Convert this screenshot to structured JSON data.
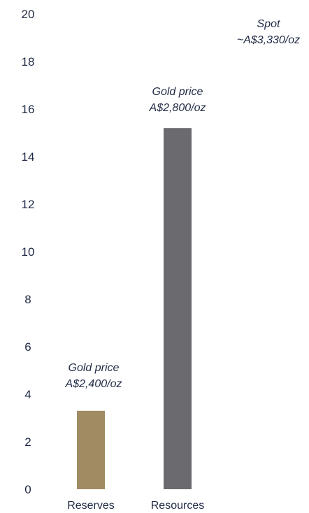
{
  "chart_data": {
    "type": "bar",
    "categories": [
      "Reserves",
      "Resources"
    ],
    "values": [
      3.3,
      15.2
    ],
    "colors": [
      "#a08c62",
      "#6b6b6f"
    ],
    "ylim": [
      0,
      20
    ],
    "yticks": [
      "0",
      "2",
      "4",
      "6",
      "8",
      "10",
      "12",
      "14",
      "16",
      "18",
      "20"
    ],
    "grid": false,
    "annotations": [
      {
        "target": "Reserves",
        "lines": [
          "Gold price",
          "A$2,400/oz"
        ]
      },
      {
        "target": "Resources",
        "lines": [
          "Gold price",
          "A$2,800/oz"
        ]
      },
      {
        "target": "spot",
        "lines": [
          "Spot",
          "~A$3,330/oz"
        ]
      }
    ]
  }
}
